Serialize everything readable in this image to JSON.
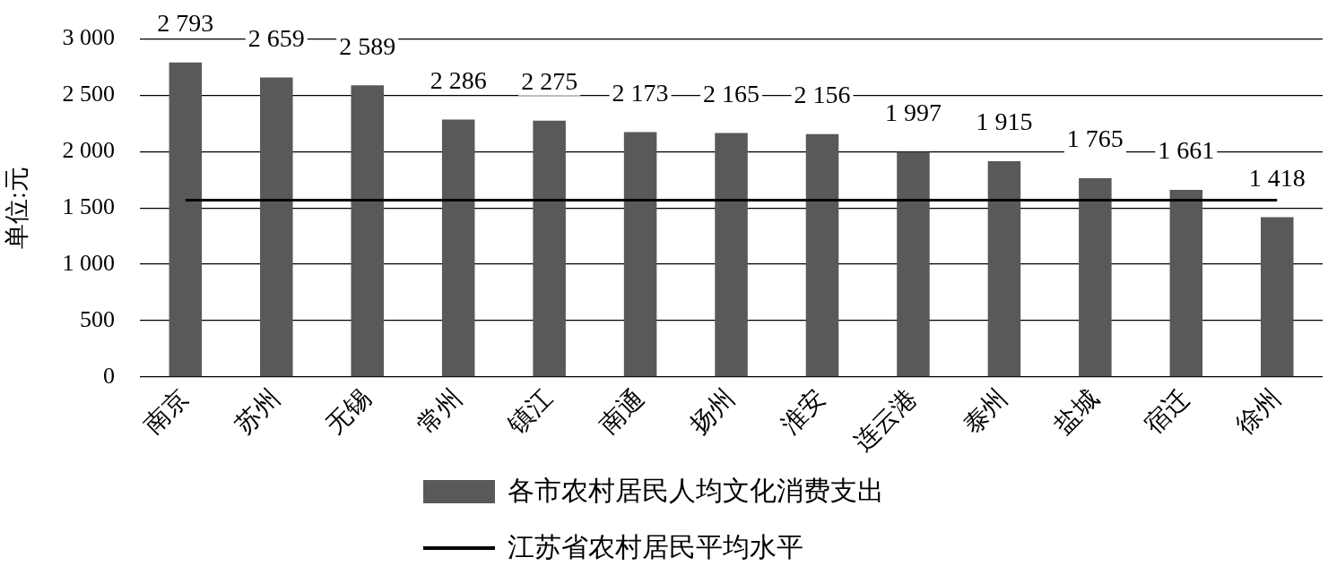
{
  "chart_data": {
    "type": "bar",
    "ylabel": "单位:元",
    "categories": [
      "南京",
      "苏州",
      "无锡",
      "常州",
      "镇江",
      "南通",
      "扬州",
      "淮安",
      "连云港",
      "泰州",
      "盐城",
      "宿迁",
      "徐州"
    ],
    "series": [
      {
        "name": "各市农村居民人均文化消费支出",
        "color": "#595959",
        "values": [
          2793,
          2659,
          2589,
          2286,
          2275,
          2173,
          2165,
          2156,
          1997,
          1915,
          1765,
          1661,
          1418
        ],
        "value_labels": [
          "2 793",
          "2 659",
          "2 589",
          "2 286",
          "2 275",
          "2 173",
          "2 165",
          "2 156",
          "1 997",
          "1 915",
          "1 765",
          "1 661",
          "1 418"
        ]
      },
      {
        "name": "江苏省农村居民平均水平",
        "type": "line",
        "color": "#000000",
        "values": [
          1570,
          1570,
          1570,
          1570,
          1570,
          1570,
          1570,
          1570,
          1570,
          1570,
          1570,
          1570,
          1570
        ]
      }
    ],
    "ylim": [
      0,
      3000
    ],
    "yticks": [
      {
        "value": 0,
        "label": "0"
      },
      {
        "value": 500,
        "label": "500"
      },
      {
        "value": 1000,
        "label": "1 000"
      },
      {
        "value": 1500,
        "label": "1 500"
      },
      {
        "value": 2000,
        "label": "2 000"
      },
      {
        "value": 2500,
        "label": "2 500"
      },
      {
        "value": 3000,
        "label": "3 000"
      }
    ],
    "grid": "y",
    "legend": "bottom",
    "marker": "none",
    "line_style": "solid"
  }
}
